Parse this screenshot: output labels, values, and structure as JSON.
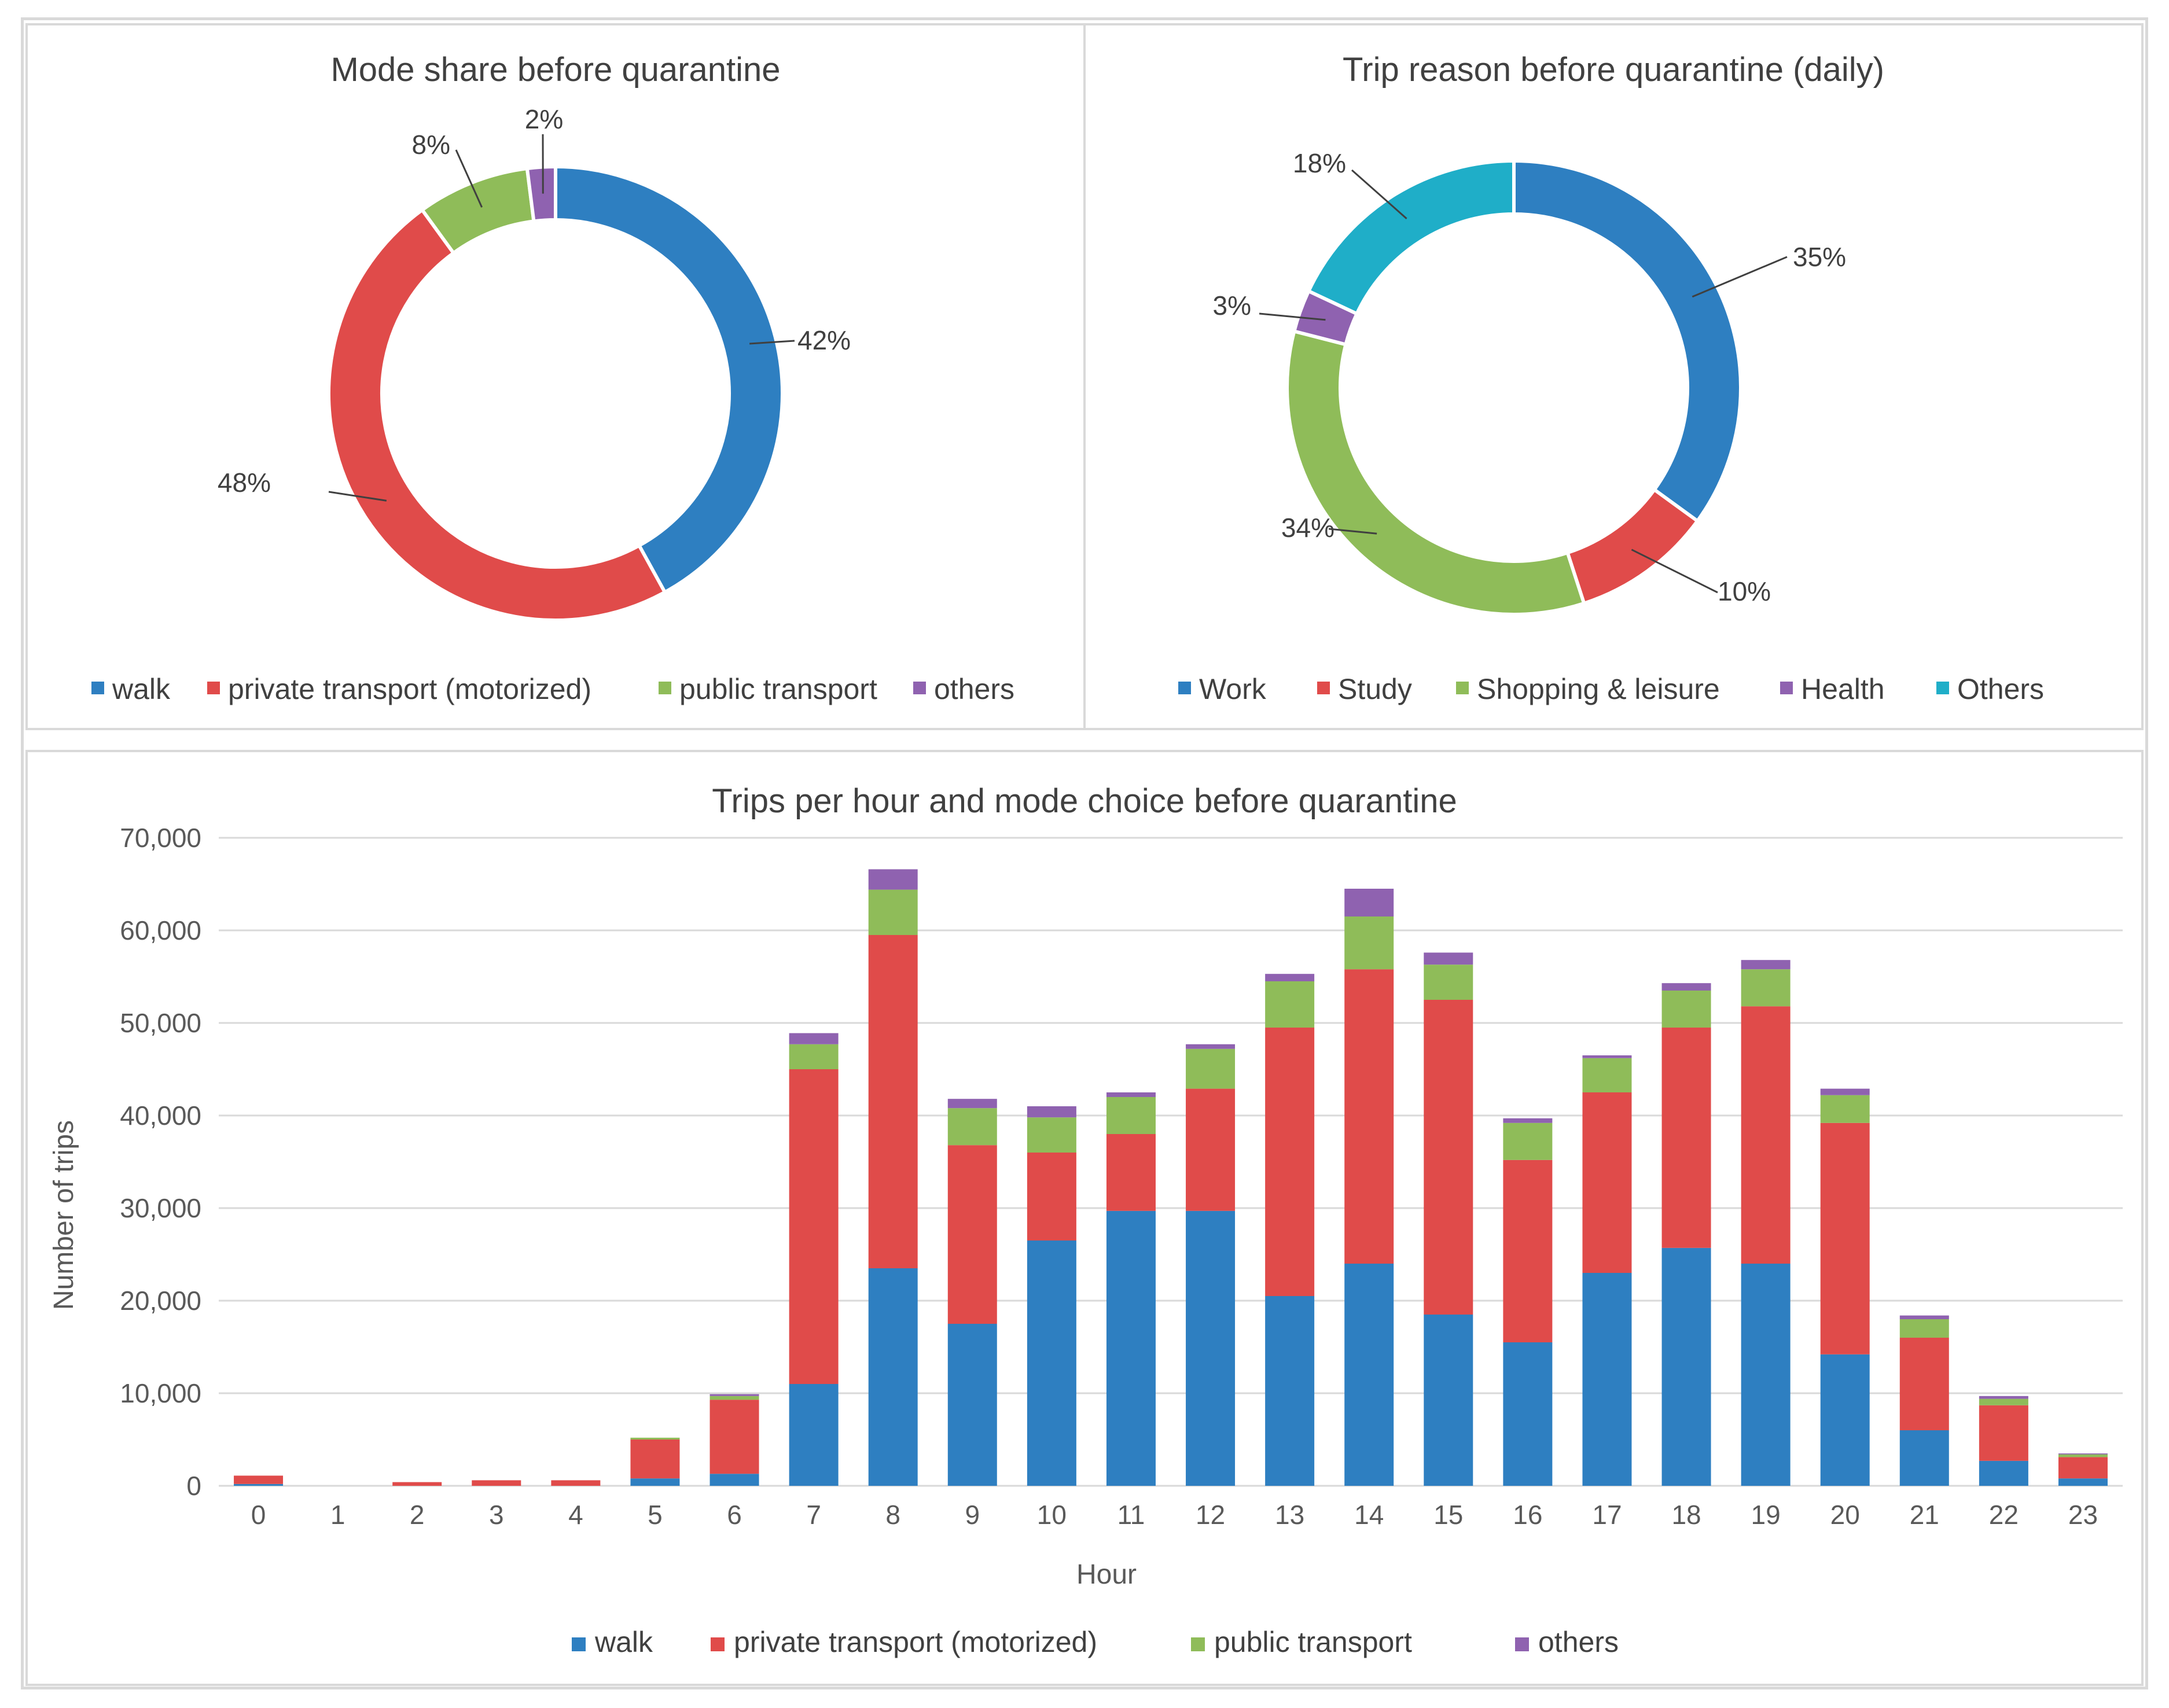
{
  "colors": {
    "walk": "#2e7fc1",
    "private": "#e04b4a",
    "public": "#8fbc59",
    "others_mode": "#8f62b0",
    "work": "#2e7fc1",
    "study": "#e04b4a",
    "shopping": "#8fbc59",
    "health": "#8f62b0",
    "others_reason": "#1faec8"
  },
  "chart_data": [
    {
      "id": "mode-share",
      "type": "pie",
      "title": "Mode share before quarantine",
      "slices": [
        {
          "key": "walk",
          "label": "walk",
          "value": 42,
          "display": "42%"
        },
        {
          "key": "private",
          "label": "private transport  (motorized)",
          "value": 48,
          "display": "48%"
        },
        {
          "key": "public",
          "label": "public transport",
          "value": 8,
          "display": "8%"
        },
        {
          "key": "others_mode",
          "label": "others",
          "value": 2,
          "display": "2%"
        }
      ],
      "legend_position": "bottom"
    },
    {
      "id": "trip-reason",
      "type": "pie",
      "title": "Trip reason before quarantine (daily)",
      "slices": [
        {
          "key": "work",
          "label": "Work",
          "value": 35,
          "display": "35%"
        },
        {
          "key": "study",
          "label": "Study",
          "value": 10,
          "display": "10%"
        },
        {
          "key": "shopping",
          "label": "Shopping & leisure",
          "value": 34,
          "display": "34%"
        },
        {
          "key": "health",
          "label": "Health",
          "value": 3,
          "display": "3%"
        },
        {
          "key": "others_reason",
          "label": "Others",
          "value": 18,
          "display": "18%"
        }
      ],
      "legend_position": "bottom"
    },
    {
      "id": "trips-per-hour",
      "type": "bar",
      "stacked": true,
      "title": "Trips per hour and mode choice before quarantine",
      "xlabel": "Hour",
      "ylabel": "Number of trips",
      "ylim": [
        0,
        70000
      ],
      "yticks": [
        0,
        10000,
        20000,
        30000,
        40000,
        50000,
        60000,
        70000
      ],
      "ytick_labels": [
        "0",
        "10,000",
        "20,000",
        "30,000",
        "40,000",
        "50,000",
        "60,000",
        "70,000"
      ],
      "grid": true,
      "categories": [
        "0",
        "1",
        "2",
        "3",
        "4",
        "5",
        "6",
        "7",
        "8",
        "9",
        "10",
        "11",
        "12",
        "13",
        "14",
        "15",
        "16",
        "17",
        "18",
        "19",
        "20",
        "21",
        "22",
        "23"
      ],
      "series": [
        {
          "key": "walk",
          "name": "walk",
          "values": [
            200,
            0,
            0,
            0,
            0,
            800,
            1300,
            11000,
            23500,
            17500,
            26500,
            29700,
            29700,
            20500,
            24000,
            18500,
            15500,
            23000,
            25700,
            24000,
            14200,
            6000,
            2700,
            800
          ]
        },
        {
          "key": "private",
          "name": "private transport  (motorized)",
          "values": [
            900,
            0,
            400,
            600,
            600,
            4200,
            8000,
            34000,
            36000,
            19300,
            9500,
            8300,
            13200,
            29000,
            31800,
            34000,
            19700,
            19500,
            23800,
            27800,
            25000,
            10000,
            6000,
            2300
          ]
        },
        {
          "key": "public",
          "name": "public transport",
          "values": [
            0,
            0,
            0,
            0,
            0,
            200,
            400,
            2700,
            4900,
            4000,
            3800,
            4000,
            4300,
            5000,
            5700,
            3800,
            4000,
            3700,
            4000,
            4000,
            3000,
            2000,
            700,
            300
          ]
        },
        {
          "key": "others_mode",
          "name": "others",
          "values": [
            0,
            0,
            0,
            0,
            0,
            0,
            200,
            1200,
            2200,
            1000,
            1200,
            500,
            500,
            800,
            3000,
            1300,
            500,
            300,
            800,
            1000,
            700,
            400,
            300,
            100
          ]
        }
      ],
      "legend_position": "bottom"
    }
  ]
}
